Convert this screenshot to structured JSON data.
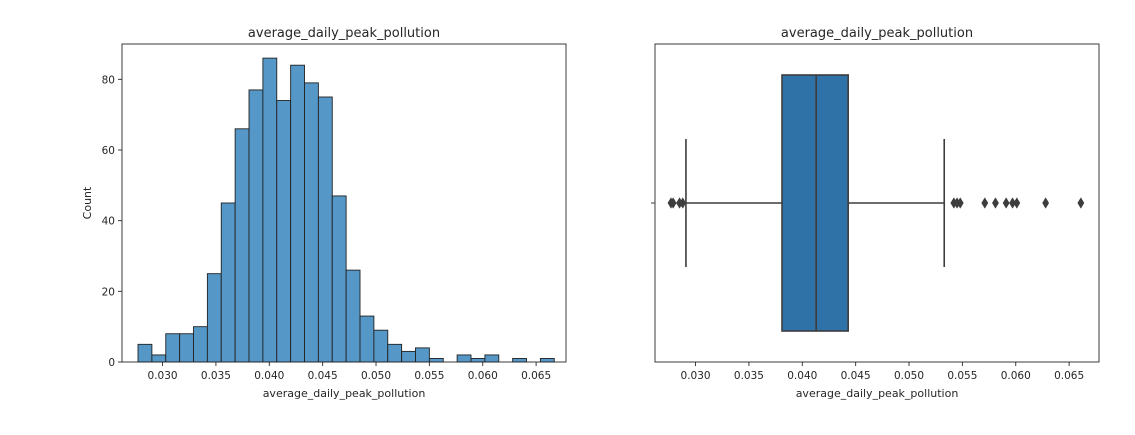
{
  "chart_data": [
    {
      "type": "bar",
      "subtype": "histogram",
      "title": "average_daily_peak_pollution",
      "xlabel": "average_daily_peak_pollution",
      "ylabel": "Count",
      "xlim": [
        0.0262,
        0.0678
      ],
      "ylim": [
        0,
        90
      ],
      "xticks": [
        0.03,
        0.035,
        0.04,
        0.045,
        0.05,
        0.055,
        0.06,
        0.065
      ],
      "xtick_labels": [
        "0.030",
        "0.035",
        "0.040",
        "0.045",
        "0.050",
        "0.055",
        "0.060",
        "0.065"
      ],
      "yticks": [
        0,
        20,
        40,
        60,
        80
      ],
      "ytick_labels": [
        "0",
        "20",
        "40",
        "60",
        "80"
      ],
      "bin_start": 0.0277,
      "bin_width": 0.0013,
      "counts": [
        5,
        2,
        8,
        8,
        10,
        25,
        45,
        66,
        77,
        86,
        74,
        84,
        79,
        75,
        47,
        26,
        13,
        9,
        5,
        3,
        4,
        1,
        0,
        2,
        1,
        2,
        0,
        1,
        0,
        1
      ],
      "color": "#5597c6",
      "edge_color": "#222222",
      "grid": false
    },
    {
      "type": "box",
      "title": "average_daily_peak_pollution",
      "xlabel": "average_daily_peak_pollution",
      "ylabel": "",
      "xlim": [
        0.0262,
        0.0678
      ],
      "xticks": [
        0.03,
        0.035,
        0.04,
        0.045,
        0.05,
        0.055,
        0.06,
        0.065
      ],
      "xtick_labels": [
        "0.030",
        "0.035",
        "0.040",
        "0.045",
        "0.050",
        "0.055",
        "0.060",
        "0.065"
      ],
      "whisker_low": 0.0291,
      "q1": 0.0381,
      "median": 0.0413,
      "q3": 0.0443,
      "whisker_high": 0.0533,
      "outliers": [
        0.0277,
        0.0279,
        0.0285,
        0.0288,
        0.0542,
        0.0545,
        0.0548,
        0.0571,
        0.0581,
        0.0591,
        0.0597,
        0.0601,
        0.0628,
        0.0661
      ],
      "color": "#2f72a8",
      "line_color": "#3d3d3d",
      "grid": false
    }
  ]
}
